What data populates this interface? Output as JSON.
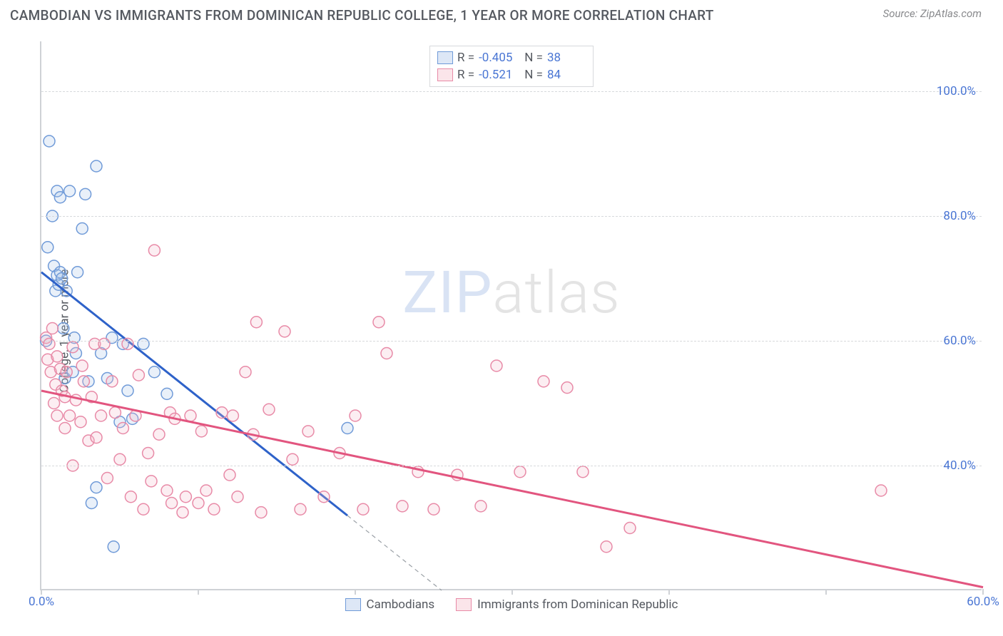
{
  "header": {
    "title": "CAMBODIAN VS IMMIGRANTS FROM DOMINICAN REPUBLIC COLLEGE, 1 YEAR OR MORE CORRELATION CHART",
    "source_prefix": "Source: ",
    "source_link": "ZipAtlas.com"
  },
  "chart": {
    "type": "scatter",
    "ylabel": "College, 1 year or more",
    "x_domain": [
      0,
      60
    ],
    "y_domain": [
      20,
      108
    ],
    "x_ticks": [
      0,
      10,
      20,
      30,
      40,
      50,
      60
    ],
    "x_tick_labels": {
      "0": "0.0%",
      "60": "60.0%"
    },
    "y_gridlines": [
      40,
      60,
      80,
      100
    ],
    "y_tick_labels": {
      "40": "40.0%",
      "60": "60.0%",
      "80": "80.0%",
      "100": "100.0%"
    },
    "background_color": "#ffffff",
    "grid_color": "#d7d9dc",
    "axis_color": "#cfd2d6",
    "tick_label_color": "#4a76d4",
    "marker_radius": 8,
    "marker_stroke_width": 1.5,
    "marker_fill_opacity": 0.25,
    "line_width": 3,
    "watermark": {
      "part1": "ZIP",
      "part2": "atlas"
    },
    "series": [
      {
        "id": "cambodians",
        "label": "Cambodians",
        "color_stroke": "#6f9ad8",
        "color_fill": "#a9c4e9",
        "line_color": "#2e62c9",
        "R": "-0.405",
        "N": "38",
        "regression": {
          "x1": 0,
          "y1": 71,
          "x2": 19.5,
          "y2": 32
        },
        "extension": {
          "x1": 19.5,
          "y1": 32,
          "x2": 25.5,
          "y2": 20
        },
        "points": [
          [
            0.3,
            60
          ],
          [
            0.4,
            75
          ],
          [
            0.5,
            92
          ],
          [
            0.7,
            80
          ],
          [
            0.8,
            72
          ],
          [
            0.9,
            68
          ],
          [
            1.0,
            84
          ],
          [
            1.0,
            70.5
          ],
          [
            1.1,
            69
          ],
          [
            1.2,
            83
          ],
          [
            1.2,
            71
          ],
          [
            1.3,
            70
          ],
          [
            1.4,
            62
          ],
          [
            1.5,
            54
          ],
          [
            1.6,
            68
          ],
          [
            1.8,
            84
          ],
          [
            2.0,
            55
          ],
          [
            2.1,
            60.5
          ],
          [
            2.2,
            58
          ],
          [
            2.3,
            71
          ],
          [
            2.6,
            78
          ],
          [
            2.8,
            83.5
          ],
          [
            3.0,
            53.5
          ],
          [
            3.2,
            34
          ],
          [
            3.5,
            88
          ],
          [
            3.5,
            36.5
          ],
          [
            3.8,
            58
          ],
          [
            4.2,
            54
          ],
          [
            4.5,
            60.5
          ],
          [
            4.6,
            27
          ],
          [
            5.0,
            47
          ],
          [
            5.2,
            59.5
          ],
          [
            5.5,
            52
          ],
          [
            5.8,
            47.5
          ],
          [
            6.5,
            59.5
          ],
          [
            7.2,
            55
          ],
          [
            8.0,
            51.5
          ],
          [
            19.5,
            46
          ]
        ]
      },
      {
        "id": "dominican",
        "label": "Immigrants from Dominican Republic",
        "color_stroke": "#e88aa7",
        "color_fill": "#f4bdcb",
        "line_color": "#e2557f",
        "R": "-0.521",
        "N": "84",
        "regression": {
          "x1": 0,
          "y1": 52,
          "x2": 60,
          "y2": 20.5
        },
        "points": [
          [
            0.3,
            60.5
          ],
          [
            0.4,
            57
          ],
          [
            0.5,
            59.5
          ],
          [
            0.6,
            55
          ],
          [
            0.7,
            62
          ],
          [
            0.8,
            50
          ],
          [
            0.9,
            53
          ],
          [
            1.0,
            57.5
          ],
          [
            1.0,
            48
          ],
          [
            1.2,
            55.5
          ],
          [
            1.3,
            52
          ],
          [
            1.5,
            46
          ],
          [
            1.5,
            51
          ],
          [
            1.6,
            55
          ],
          [
            1.8,
            48
          ],
          [
            2.0,
            59
          ],
          [
            2.0,
            40
          ],
          [
            2.2,
            50.5
          ],
          [
            2.5,
            47
          ],
          [
            2.6,
            56
          ],
          [
            2.7,
            53.5
          ],
          [
            3.0,
            44
          ],
          [
            3.2,
            51
          ],
          [
            3.4,
            59.5
          ],
          [
            3.5,
            44.5
          ],
          [
            3.8,
            48
          ],
          [
            4.0,
            59.5
          ],
          [
            4.2,
            38
          ],
          [
            4.5,
            53.5
          ],
          [
            4.7,
            48.5
          ],
          [
            5.0,
            41
          ],
          [
            5.2,
            46
          ],
          [
            5.5,
            59.5
          ],
          [
            5.7,
            35
          ],
          [
            6.0,
            48
          ],
          [
            6.2,
            54.5
          ],
          [
            6.5,
            33
          ],
          [
            6.8,
            42
          ],
          [
            7.0,
            37.5
          ],
          [
            7.2,
            74.5
          ],
          [
            7.5,
            45
          ],
          [
            8.0,
            36
          ],
          [
            8.2,
            48.5
          ],
          [
            8.3,
            34
          ],
          [
            8.5,
            47.5
          ],
          [
            9.0,
            32.5
          ],
          [
            9.2,
            35
          ],
          [
            9.5,
            48
          ],
          [
            10.0,
            34
          ],
          [
            10.2,
            45.5
          ],
          [
            10.5,
            36
          ],
          [
            11.0,
            33
          ],
          [
            11.5,
            48.5
          ],
          [
            12.0,
            38.5
          ],
          [
            12.2,
            48
          ],
          [
            12.5,
            35
          ],
          [
            13.0,
            55
          ],
          [
            13.5,
            45
          ],
          [
            13.7,
            63
          ],
          [
            14.0,
            32.5
          ],
          [
            14.5,
            49
          ],
          [
            15.5,
            61.5
          ],
          [
            16.0,
            41
          ],
          [
            16.5,
            33
          ],
          [
            17.0,
            45.5
          ],
          [
            18.0,
            35
          ],
          [
            19.0,
            42
          ],
          [
            20.0,
            48
          ],
          [
            20.5,
            33
          ],
          [
            21.5,
            63
          ],
          [
            22.0,
            58
          ],
          [
            23.0,
            33.5
          ],
          [
            24.0,
            39
          ],
          [
            25.0,
            33
          ],
          [
            26.5,
            38.5
          ],
          [
            28.0,
            33.5
          ],
          [
            29.0,
            56
          ],
          [
            30.5,
            39
          ],
          [
            32.0,
            53.5
          ],
          [
            33.5,
            52.5
          ],
          [
            34.5,
            39
          ],
          [
            36.0,
            27
          ],
          [
            37.5,
            30
          ],
          [
            53.5,
            36
          ]
        ]
      }
    ],
    "legend_bottom": [
      {
        "series": "cambodians"
      },
      {
        "series": "dominican"
      }
    ]
  }
}
